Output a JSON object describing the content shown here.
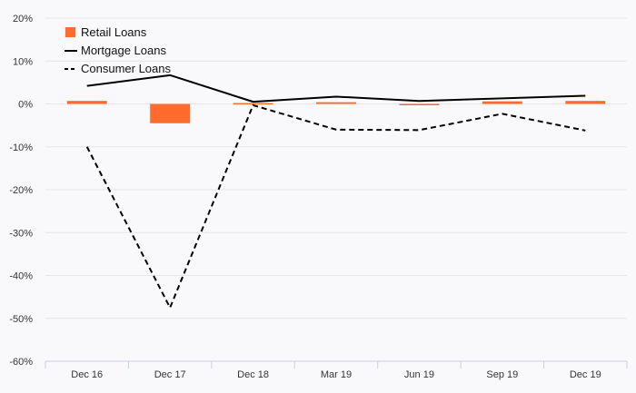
{
  "chart_data": {
    "type": "bar",
    "categories": [
      "Dec 16",
      "Dec 17",
      "Dec 18",
      "Mar 19",
      "Jun 19",
      "Sep 19",
      "Dec 19"
    ],
    "series": [
      {
        "name": "Retail Loans",
        "kind": "bar",
        "color": "#ff6b2d",
        "values": [
          0.7,
          -4.5,
          0.2,
          0.4,
          -0.2,
          0.6,
          0.7
        ]
      },
      {
        "name": "Mortgage Loans",
        "kind": "line",
        "style": "solid",
        "color": "#000000",
        "values": [
          4.2,
          6.7,
          0.5,
          1.7,
          0.7,
          1.3,
          1.9
        ]
      },
      {
        "name": "Consumer Loans",
        "kind": "line",
        "style": "dashed",
        "color": "#000000",
        "values": [
          -10,
          -47.5,
          -0.3,
          -6,
          -6.1,
          -2.3,
          -6.2
        ]
      }
    ],
    "yticks": [
      "20%",
      "10%",
      "0%",
      "-10%",
      "-20%",
      "-30%",
      "-40%",
      "-50%",
      "-60%"
    ],
    "ylim": [
      -60,
      20
    ],
    "grid": true,
    "legend_position": "top-left",
    "title": "",
    "xlabel": "",
    "ylabel": ""
  }
}
